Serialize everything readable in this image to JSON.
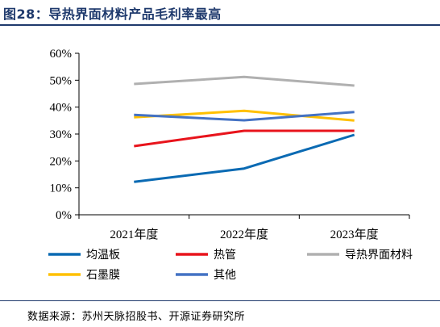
{
  "figure": {
    "title": "图28：导热界面材料产品毛利率最高",
    "source": "数据来源：苏州天脉招股书、开源证券研究所"
  },
  "chart_data": {
    "type": "line",
    "title": "",
    "xlabel": "",
    "ylabel": "",
    "categories": [
      "2021年度",
      "2022年度",
      "2023年度"
    ],
    "ylim": [
      0,
      60
    ],
    "yticks": [
      "0%",
      "10%",
      "20%",
      "30%",
      "40%",
      "50%",
      "60%"
    ],
    "ytick_values": [
      0,
      10,
      20,
      30,
      40,
      50,
      60
    ],
    "grid": false,
    "legend_position": "bottom",
    "series": [
      {
        "name": "均温板",
        "color": "#0a6ab3",
        "values": [
          12.2,
          17.2,
          29.7
        ]
      },
      {
        "name": "热管",
        "color": "#e8141c",
        "values": [
          25.5,
          31.2,
          31.2
        ]
      },
      {
        "name": "导热界面材料",
        "color": "#b0b0b0",
        "values": [
          48.6,
          51.2,
          48.0
        ]
      },
      {
        "name": "石墨膜",
        "color": "#ffc000",
        "values": [
          36.2,
          38.6,
          35.0
        ]
      },
      {
        "name": "其他",
        "color": "#4472c4",
        "values": [
          37.1,
          35.1,
          38.2
        ]
      }
    ]
  }
}
